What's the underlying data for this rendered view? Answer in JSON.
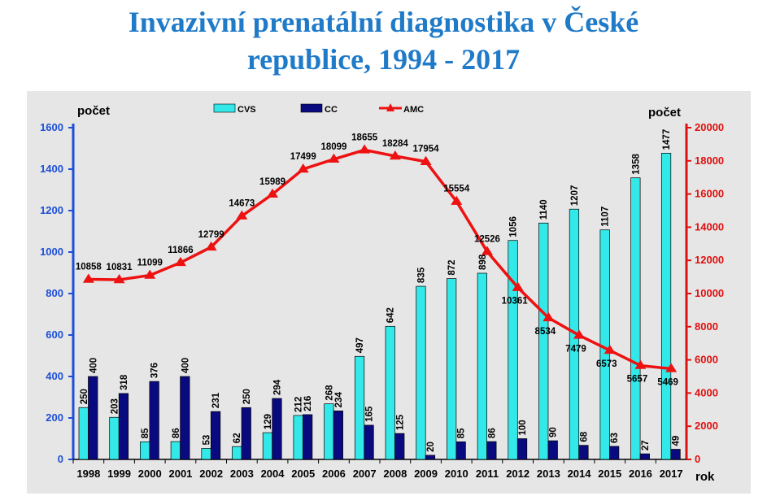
{
  "chart_data": {
    "type": "bar",
    "title": "Invazivní prenatální diagnostika v České republice, 1994 - 2017",
    "title_lines": [
      "Invazivní prenatální diagnostika v České",
      "republice, 1994 - 2017"
    ],
    "ylabel_left": "počet",
    "ylabel_right": "počet",
    "xlabel": "rok",
    "ylim_left": [
      0,
      1600
    ],
    "yticks_left": [
      "0",
      "200",
      "400",
      "600",
      "800",
      "1000",
      "1200",
      "1400",
      "1600"
    ],
    "ylim_right": [
      0,
      20000
    ],
    "yticks_right": [
      "0",
      "2000",
      "4000",
      "6000",
      "8000",
      "10000",
      "12000",
      "14000",
      "16000",
      "18000",
      "20000"
    ],
    "grid": false,
    "legend_position": "top",
    "categories": [
      "1998",
      "1999",
      "2000",
      "2001",
      "2002",
      "2003",
      "2004",
      "2005",
      "2006",
      "2007",
      "2008",
      "2009",
      "2010",
      "2011",
      "2012",
      "2013",
      "2014",
      "2015",
      "2016",
      "2017"
    ],
    "series": [
      {
        "name": "CVS",
        "type": "bar",
        "axis": "left",
        "color": "#33e8e8",
        "values": [
          250,
          203,
          85,
          86,
          53,
          62,
          129,
          212,
          268,
          497,
          642,
          835,
          872,
          898,
          1056,
          1140,
          1207,
          1107,
          1358,
          1477
        ],
        "labels": [
          "250",
          "203",
          "85",
          "86",
          "53",
          "62",
          "129",
          "212",
          "268",
          "497",
          "642",
          "835",
          "872",
          "898",
          "1056",
          "1140",
          "1207",
          "1107",
          "1358",
          "1477"
        ]
      },
      {
        "name": "CC",
        "type": "bar",
        "axis": "left",
        "color": "#0a0a80",
        "values": [
          400,
          318,
          376,
          400,
          231,
          250,
          294,
          216,
          234,
          165,
          125,
          20,
          85,
          86,
          100,
          90,
          68,
          63,
          27,
          49
        ],
        "labels": [
          "400",
          "318",
          "376",
          "400",
          "231",
          "250",
          "294",
          "216",
          "234",
          "165",
          "125",
          "20",
          "85",
          "86",
          "100",
          "90",
          "68",
          "63",
          "27",
          "49"
        ]
      },
      {
        "name": "AMC",
        "type": "line",
        "axis": "right",
        "color": "#ee1111",
        "values": [
          10858,
          10831,
          11099,
          11866,
          12799,
          14673,
          15989,
          17499,
          18099,
          18655,
          18284,
          17954,
          15554,
          12526,
          10361,
          8534,
          7479,
          6573,
          5657,
          5469
        ],
        "labels": [
          "10858",
          "10831",
          "11099",
          "11866",
          "12799",
          "14673",
          "15989",
          "17499",
          "18099",
          "18655",
          "18284",
          "17954",
          "15554",
          "12526",
          "10361",
          "8534",
          "7479",
          "6573",
          "5657",
          "5469"
        ]
      }
    ],
    "colors": {
      "title": "#1f7ac8",
      "left_axis": "#1c4fd8",
      "right_axis": "#e01010",
      "plot_background": "#e6e6e6"
    }
  }
}
